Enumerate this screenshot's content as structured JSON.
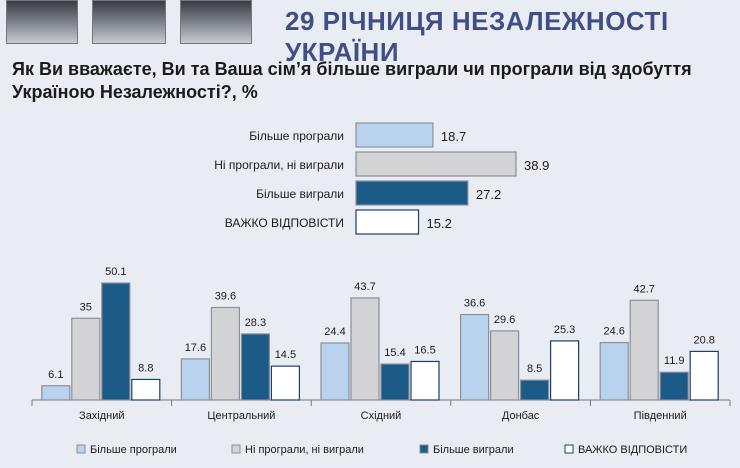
{
  "header": {
    "title": "29 РІЧНИЦЯ НЕЗАЛЕЖНОСТІ УКРАЇНИ"
  },
  "question": "Як Ви вважаєте, Ви та Ваша сім’я більше виграли чи програли від здобуття Україною Незалежності?, %",
  "colors": {
    "lost_more": "#b9d2ee",
    "neither": "#d3d3d6",
    "won_more": "#1c5a87",
    "hard_to_say": "#ffffff"
  },
  "chart_data": [
    {
      "type": "bar",
      "orientation": "horizontal",
      "categories": [
        "Більше програли",
        "Ні програли, ні виграли",
        "Більше виграли",
        "ВАЖКО ВІДПОВІСТИ"
      ],
      "values": [
        18.7,
        38.9,
        27.2,
        15.2
      ],
      "data_labels": [
        "18.7",
        "38.9",
        "27.2",
        "15.2"
      ],
      "category_colors": [
        "#b9d2ee",
        "#d3d3d6",
        "#1c5a87",
        "#ffffff"
      ]
    },
    {
      "type": "bar",
      "orientation": "vertical",
      "categories": [
        "Західний",
        "Центральний",
        "Східний",
        "Донбас",
        "Південний"
      ],
      "series": [
        {
          "name": "Більше програли",
          "values": [
            6.1,
            17.6,
            24.4,
            36.6,
            24.6
          ],
          "labels": [
            "6.1",
            "17.6",
            "24.4",
            "36.6",
            "24.6"
          ],
          "color": "#b9d2ee"
        },
        {
          "name": "Ні програли, ні виграли",
          "values": [
            35,
            39.6,
            43.7,
            29.6,
            42.7
          ],
          "labels": [
            "35",
            "39.6",
            "43.7",
            "29.6",
            "42.7"
          ],
          "color": "#d3d3d6"
        },
        {
          "name": "Більше виграли",
          "values": [
            50.1,
            28.3,
            15.4,
            8.5,
            11.9
          ],
          "labels": [
            "50.1",
            "28.3",
            "15.4",
            "8.5",
            "11.9"
          ],
          "color": "#1c5a87"
        },
        {
          "name": "ВАЖКО ВІДПОВІСТИ",
          "values": [
            8.8,
            14.5,
            16.5,
            25.3,
            20.8
          ],
          "labels": [
            "8.8",
            "14.5",
            "16.5",
            "25.3",
            "20.8"
          ],
          "color": "#ffffff"
        }
      ],
      "legend": "bottom"
    }
  ]
}
